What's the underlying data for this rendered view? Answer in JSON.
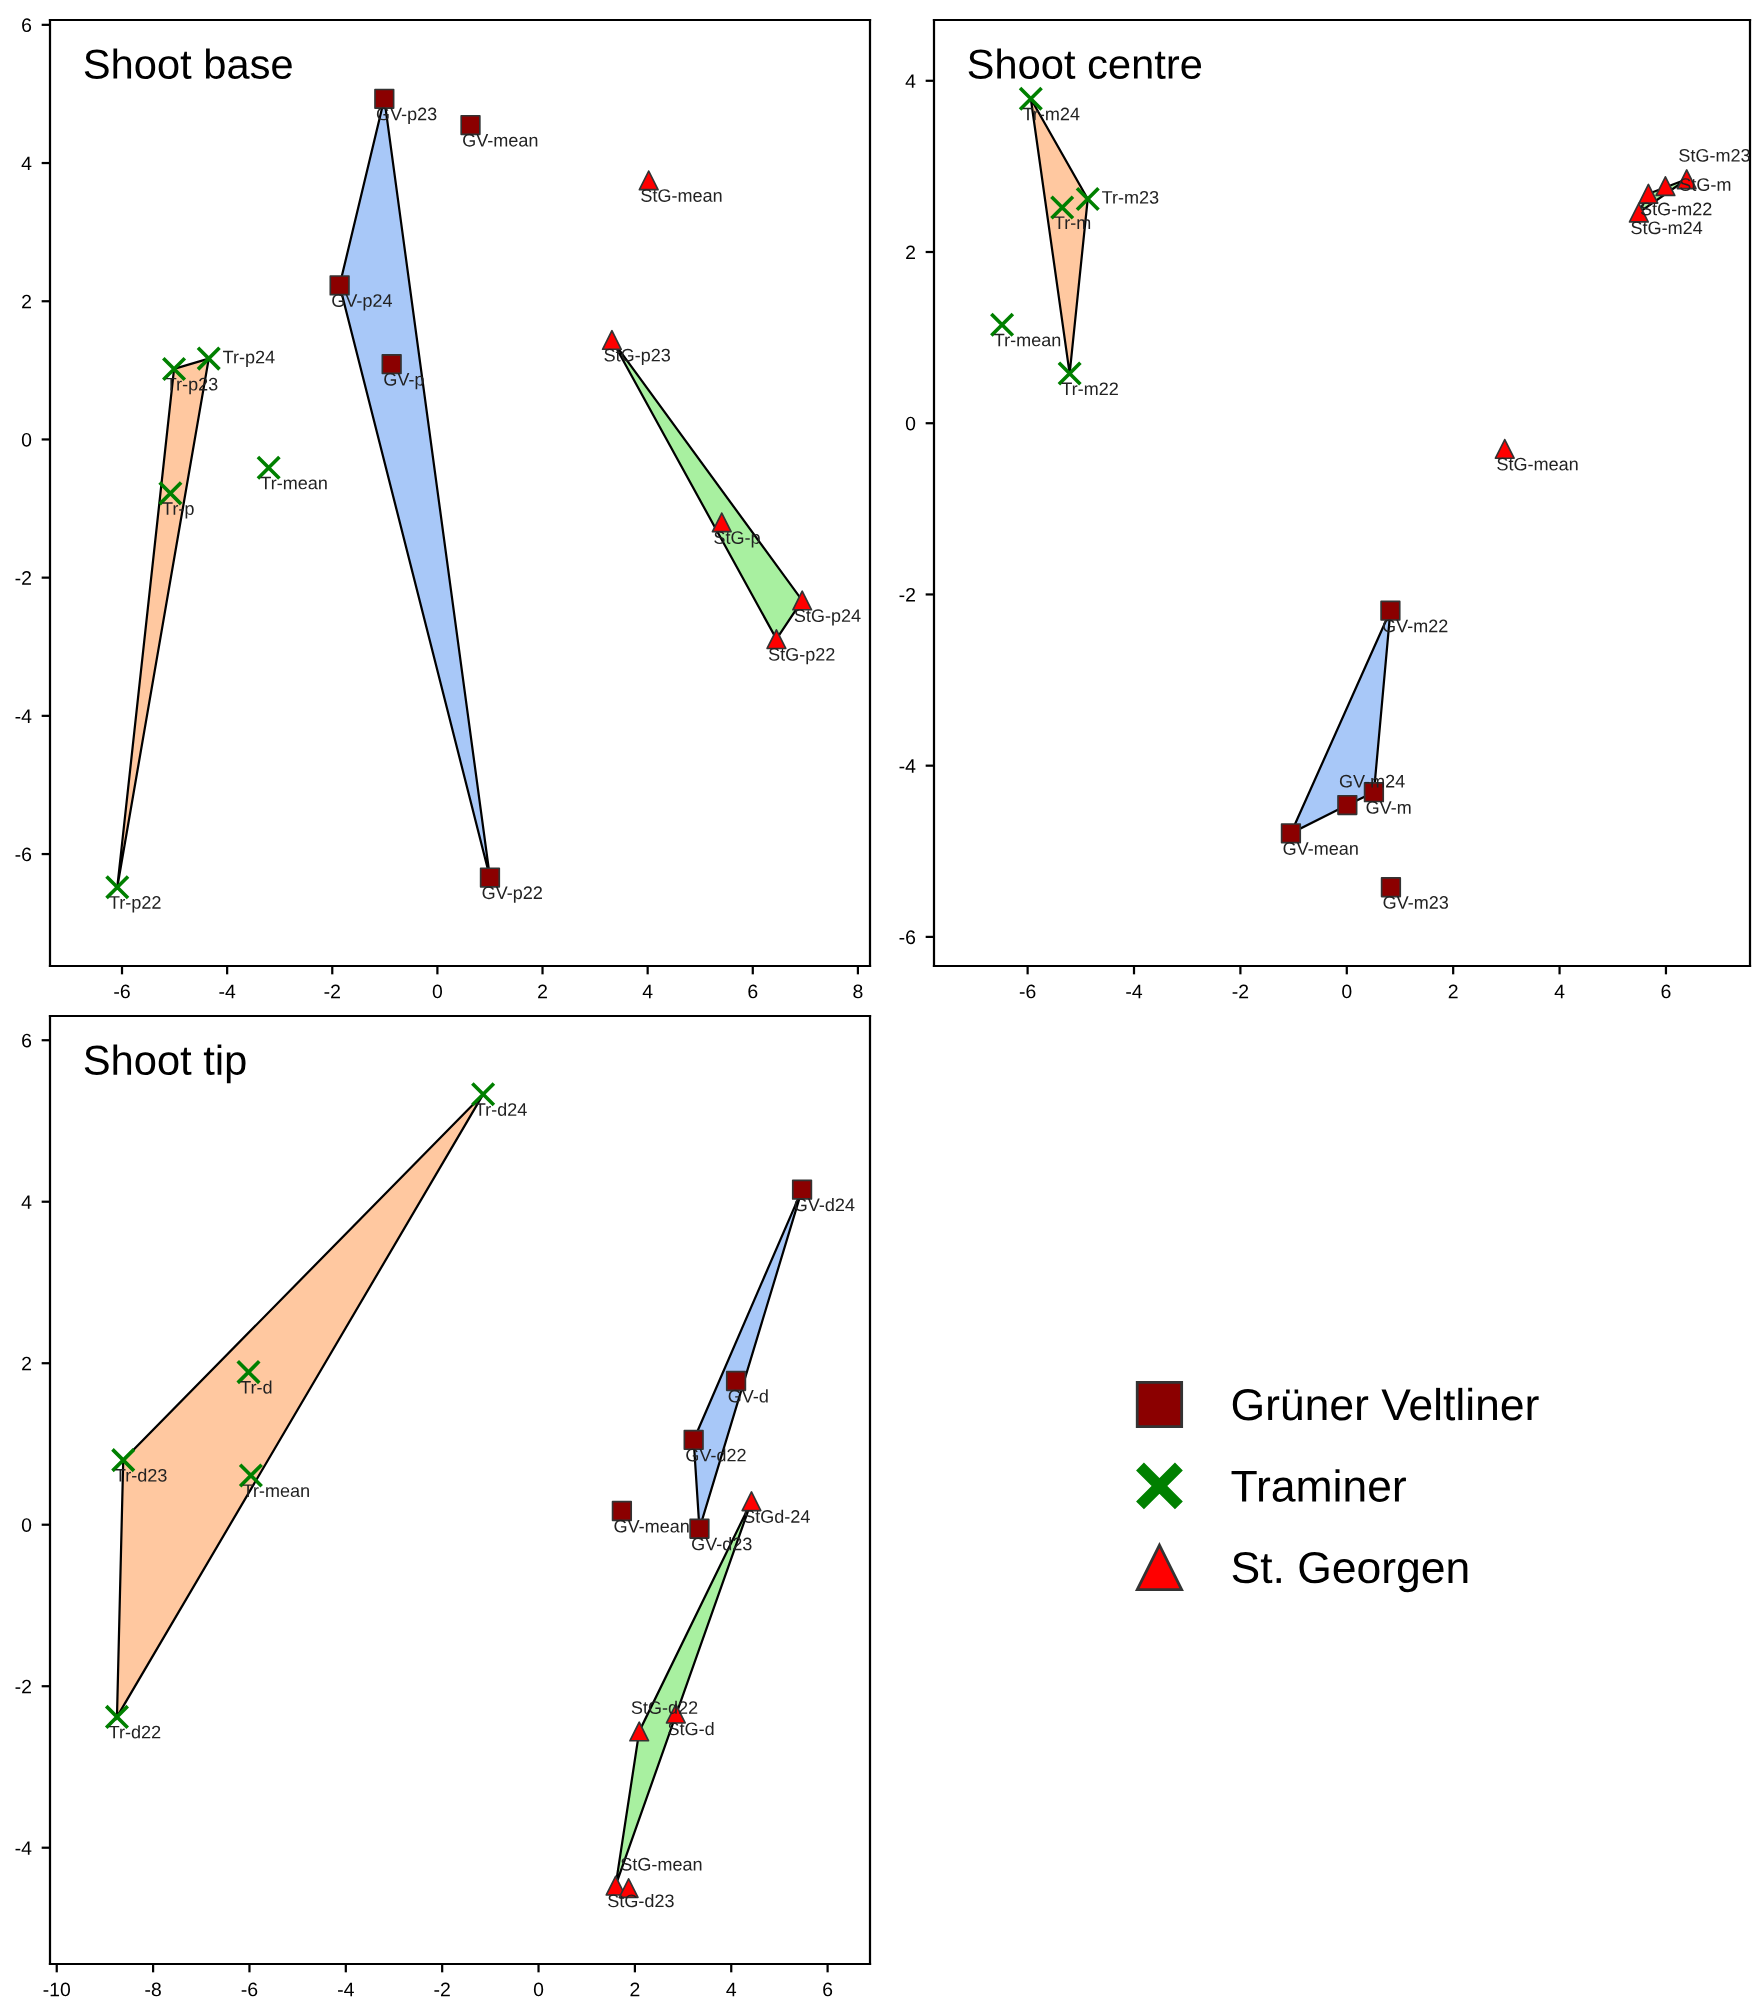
{
  "chart_data": [
    {
      "type": "scatter",
      "title": "Shoot base",
      "xlim": [
        -7.37,
        8.23
      ],
      "ylim": [
        -7.62,
        6.07
      ],
      "xticks": [
        -6,
        -4,
        -2,
        0,
        2,
        4,
        6,
        8
      ],
      "yticks": [
        -6,
        -4,
        -2,
        0,
        2,
        4,
        6
      ],
      "grid": false,
      "legend": false,
      "series": [
        {
          "type": "area",
          "color": "#ffc8a0",
          "x": [
            -6.09,
            -5.01,
            -4.35
          ],
          "values": [
            -6.48,
            1.02,
            1.17
          ]
        },
        {
          "type": "area",
          "color": "#a8c8f8",
          "x": [
            -1.01,
            -1.86,
            1.0
          ],
          "values": [
            4.93,
            2.23,
            -6.34
          ]
        },
        {
          "type": "area",
          "color": "#a8f0a0",
          "x": [
            3.32,
            6.94,
            6.45
          ],
          "values": [
            1.44,
            -2.33,
            -2.89
          ]
        },
        {
          "color": "#8b0000",
          "marker": "square",
          "x": [
            -1.01,
            0.63,
            -1.86,
            -0.87,
            1.0
          ],
          "values": [
            4.93,
            4.55,
            2.23,
            1.09,
            -6.34
          ]
        },
        {
          "color": "#008000",
          "marker": "cross",
          "x": [
            -6.09,
            -5.01,
            -4.35,
            -5.08,
            -3.21
          ],
          "values": [
            -6.48,
            1.02,
            1.17,
            -0.78,
            -0.41
          ]
        },
        {
          "color": "#ff0000",
          "marker": "triangle",
          "x": [
            4.02,
            3.32,
            5.41,
            6.94,
            6.45
          ],
          "values": [
            3.75,
            1.44,
            -1.2,
            -2.33,
            -2.89
          ]
        }
      ],
      "annotations": [
        {
          "text": "GV-p23",
          "x": -1.01,
          "y": 4.93
        },
        {
          "text": "GV-mean",
          "x": 0.63,
          "y": 4.55
        },
        {
          "text": "GV-p24",
          "x": -1.86,
          "y": 2.23
        },
        {
          "text": "GV-p",
          "x": -0.87,
          "y": 1.09
        },
        {
          "text": "GV-p22",
          "x": 1.0,
          "y": -6.34
        },
        {
          "text": "Tr-p22",
          "x": -6.09,
          "y": -6.48
        },
        {
          "text": "Tr-p23",
          "x": -5.01,
          "y": 1.02
        },
        {
          "text": "Tr-p24",
          "x": -4.35,
          "y": 1.17
        },
        {
          "text": "Tr-p",
          "x": -5.08,
          "y": -0.78
        },
        {
          "text": "Tr-mean",
          "x": -3.21,
          "y": -0.41
        },
        {
          "text": "StG-mean",
          "x": 4.02,
          "y": 3.75
        },
        {
          "text": "StG-p23",
          "x": 3.32,
          "y": 1.44
        },
        {
          "text": "StG-p",
          "x": 5.41,
          "y": -1.2
        },
        {
          "text": "StG-p24",
          "x": 6.94,
          "y": -2.33
        },
        {
          "text": "StG-p22",
          "x": 6.45,
          "y": -2.89
        }
      ]
    },
    {
      "type": "scatter",
      "title": "Shoot centre",
      "xlim": [
        -7.76,
        7.58
      ],
      "ylim": [
        -6.34,
        4.71
      ],
      "xticks": [
        -6,
        -4,
        -2,
        0,
        2,
        4,
        6
      ],
      "yticks": [
        -6,
        -4,
        -2,
        0,
        2,
        4
      ],
      "grid": false,
      "legend": false,
      "series": [
        {
          "type": "area",
          "color": "#ffc8a0",
          "x": [
            -5.94,
            -4.87,
            -5.21
          ],
          "values": [
            3.79,
            2.62,
            0.58
          ]
        },
        {
          "type": "area",
          "color": "#a8c8f8",
          "x": [
            -1.05,
            0.82,
            0.51,
            0.01
          ],
          "values": [
            -4.79,
            -2.19,
            -4.31,
            -4.46
          ]
        },
        {
          "type": "area",
          "color": "#a8f0a0",
          "x": [
            5.49,
            5.67,
            6.39
          ],
          "values": [
            2.46,
            2.68,
            2.85
          ]
        },
        {
          "color": "#8b0000",
          "marker": "square",
          "x": [
            0.82,
            0.51,
            0.01,
            -1.05,
            0.83
          ],
          "values": [
            -2.19,
            -4.31,
            -4.46,
            -4.79,
            -5.42
          ]
        },
        {
          "color": "#008000",
          "marker": "cross",
          "x": [
            -5.94,
            -5.35,
            -4.87,
            -6.48,
            -5.21
          ],
          "values": [
            3.79,
            2.52,
            2.62,
            1.15,
            0.58
          ]
        },
        {
          "color": "#ff0000",
          "marker": "triangle",
          "x": [
            5.49,
            5.67,
            5.99,
            6.39,
            2.97
          ],
          "values": [
            2.46,
            2.68,
            2.77,
            2.85,
            -0.3
          ]
        }
      ],
      "annotations": [
        {
          "text": "Tr-m24",
          "x": -5.94,
          "y": 3.79
        },
        {
          "text": "Tr-m",
          "x": -5.35,
          "y": 2.52
        },
        {
          "text": "Tr-m23",
          "x": -4.87,
          "y": 2.62
        },
        {
          "text": "Tr-mean",
          "x": -6.48,
          "y": 1.15
        },
        {
          "text": "Tr-m22",
          "x": -5.21,
          "y": 0.58
        },
        {
          "text": "StG-m24",
          "x": 5.49,
          "y": 2.46
        },
        {
          "text": "StG-m22",
          "x": 5.67,
          "y": 2.68
        },
        {
          "text": "StG-m",
          "x": 5.99,
          "y": 2.77
        },
        {
          "text": "StG-m23",
          "x": 6.39,
          "y": 2.85
        },
        {
          "text": "StG-mean",
          "x": 2.97,
          "y": -0.3
        },
        {
          "text": "GV-m22",
          "x": 0.82,
          "y": -2.19
        },
        {
          "text": "GV-m",
          "x": 0.51,
          "y": -4.31
        },
        {
          "text": "GV-m24",
          "x": 0.01,
          "y": -4.46
        },
        {
          "text": "GV-mean",
          "x": -1.05,
          "y": -4.79
        },
        {
          "text": "GV-m23",
          "x": 0.83,
          "y": -5.42
        }
      ]
    },
    {
      "type": "scatter",
      "title": "Shoot tip",
      "xlim": [
        -10.14,
        6.88
      ],
      "ylim": [
        -5.44,
        6.3
      ],
      "xticks": [
        -10,
        -8,
        -6,
        -4,
        -2,
        0,
        2,
        4,
        6
      ],
      "yticks": [
        -4,
        -2,
        0,
        2,
        4,
        6
      ],
      "grid": false,
      "legend": "right",
      "series": [
        {
          "type": "area",
          "color": "#ffc8a0",
          "x": [
            -1.15,
            -8.62,
            -8.75
          ],
          "values": [
            5.33,
            0.8,
            -2.38
          ]
        },
        {
          "type": "area",
          "color": "#a8c8f8",
          "x": [
            5.47,
            3.22,
            3.34
          ],
          "values": [
            4.15,
            1.05,
            -0.05
          ]
        },
        {
          "type": "area",
          "color": "#a8f0a0",
          "x": [
            4.42,
            2.09,
            1.6
          ],
          "values": [
            0.29,
            -2.56,
            -4.47
          ]
        },
        {
          "name": "Grüner Veltliner",
          "color": "#8b0000",
          "marker": "square",
          "x": [
            5.47,
            4.1,
            3.22,
            1.73,
            3.34
          ],
          "values": [
            4.15,
            1.78,
            1.05,
            0.17,
            -0.05
          ]
        },
        {
          "name": "Traminer",
          "color": "#008000",
          "marker": "cross",
          "x": [
            -1.15,
            -6.02,
            -8.62,
            -5.97,
            -8.75
          ],
          "values": [
            5.33,
            1.89,
            0.8,
            0.61,
            -2.38
          ]
        },
        {
          "name": "St. Georgen",
          "color": "#ff0000",
          "marker": "triangle",
          "x": [
            4.42,
            2.85,
            2.09,
            1.6,
            1.87
          ],
          "values": [
            0.29,
            -2.34,
            -2.56,
            -4.47,
            -4.5
          ]
        }
      ],
      "annotations": [
        {
          "text": "Tr-d24",
          "x": -1.15,
          "y": 5.33
        },
        {
          "text": "Tr-d",
          "x": -6.02,
          "y": 1.89
        },
        {
          "text": "Tr-d23",
          "x": -8.62,
          "y": 0.8
        },
        {
          "text": "Tr-mean",
          "x": -5.97,
          "y": 0.61
        },
        {
          "text": "Tr-d22",
          "x": -8.75,
          "y": -2.38
        },
        {
          "text": "GV-d24",
          "x": 5.47,
          "y": 4.15
        },
        {
          "text": "GV-d",
          "x": 4.1,
          "y": 1.78
        },
        {
          "text": "GV-d22",
          "x": 3.22,
          "y": 1.05
        },
        {
          "text": "GV-mean",
          "x": 1.73,
          "y": 0.17
        },
        {
          "text": "GV-d23",
          "x": 3.34,
          "y": -0.05
        },
        {
          "text": "StGd-24",
          "x": 4.42,
          "y": 0.29
        },
        {
          "text": "StG-d",
          "x": 2.85,
          "y": -2.34
        },
        {
          "text": "StG-d22",
          "x": 2.09,
          "y": -2.56
        },
        {
          "text": "StG-d23",
          "x": 1.6,
          "y": -4.47
        },
        {
          "text": "StG-mean",
          "x": 1.87,
          "y": -4.5
        }
      ]
    }
  ]
}
